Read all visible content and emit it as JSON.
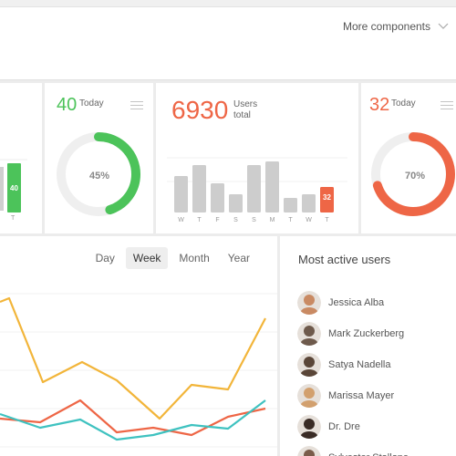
{
  "header": {
    "more_label": "More components"
  },
  "card1": {
    "bar_value_label": "40",
    "axis_label": "T",
    "color": "#4cc35a"
  },
  "card2": {
    "number": "40",
    "number_caption": "Today",
    "donut_label": "45%",
    "donut_fraction": 0.45,
    "color": "#4cc35a"
  },
  "card3": {
    "number": "6930",
    "caption_line1": "Users",
    "caption_line2": "total",
    "color": "#ee6646",
    "days": [
      "W",
      "T",
      "F",
      "S",
      "S",
      "M",
      "T",
      "W",
      "T"
    ],
    "bar_values": [
      20,
      26,
      16,
      10,
      26,
      28,
      8,
      10,
      14
    ],
    "highlight_label": "32"
  },
  "card4": {
    "number": "32",
    "number_caption": "Today",
    "donut_label": "70%",
    "donut_fraction": 0.7,
    "color": "#ee6646"
  },
  "chart": {
    "tabs": [
      "Day",
      "Week",
      "Month",
      "Year"
    ],
    "active_tab": "Week",
    "series": [
      {
        "color": "#f2b53a",
        "values": [
          340,
          360,
          285,
          300,
          290,
          230,
          265,
          260,
          350
        ]
      },
      {
        "color": "#ee6646",
        "values": [
          185,
          183,
          205,
          175,
          180,
          176,
          195,
          205
        ]
      },
      {
        "color": "#3fc2c0",
        "values": [
          190,
          180,
          174,
          178,
          182,
          179,
          200
        ]
      }
    ]
  },
  "users": {
    "title": "Most active users",
    "list": [
      {
        "name": "Jessica Alba",
        "avatar_color": "#c98a63"
      },
      {
        "name": "Mark Zuckerberg",
        "avatar_color": "#6e5a4c"
      },
      {
        "name": "Satya Nadella",
        "avatar_color": "#5a4638"
      },
      {
        "name": "Marissa Mayer",
        "avatar_color": "#d2a06e"
      },
      {
        "name": "Dr. Dre",
        "avatar_color": "#3a2c26"
      },
      {
        "name": "Sylvester Stallone",
        "avatar_color": "#7a5c4a"
      }
    ]
  }
}
